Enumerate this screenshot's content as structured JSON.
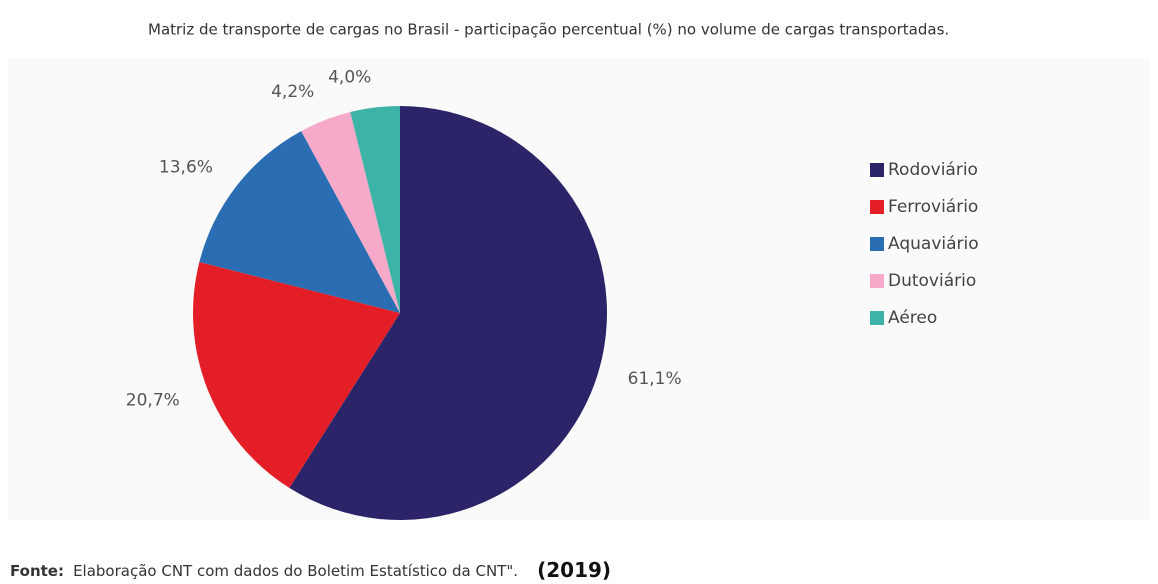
{
  "chart_data": {
    "type": "pie",
    "title": "Matriz de transporte de cargas no Brasil - participação percentual (%) no volume de cargas transportadas.",
    "categories": [
      "Rodoviário",
      "Ferroviário",
      "Aquaviário",
      "Dutoviário",
      "Aéreo"
    ],
    "values": [
      61.1,
      20.7,
      13.6,
      4.2,
      4.0
    ],
    "value_labels": [
      "61,1%",
      "20,7%",
      "13,6%",
      "4,2%",
      "4,0%"
    ],
    "colors": [
      "#2c2468",
      "#e31e26",
      "#2a6db3",
      "#f6a9c8",
      "#3bb3a6"
    ],
    "legend": "right"
  },
  "source": {
    "label": "Fonte:",
    "text": "Elaboração CNT com dados do Boletim Estatístico da CNT\".",
    "year": "(2019)"
  }
}
